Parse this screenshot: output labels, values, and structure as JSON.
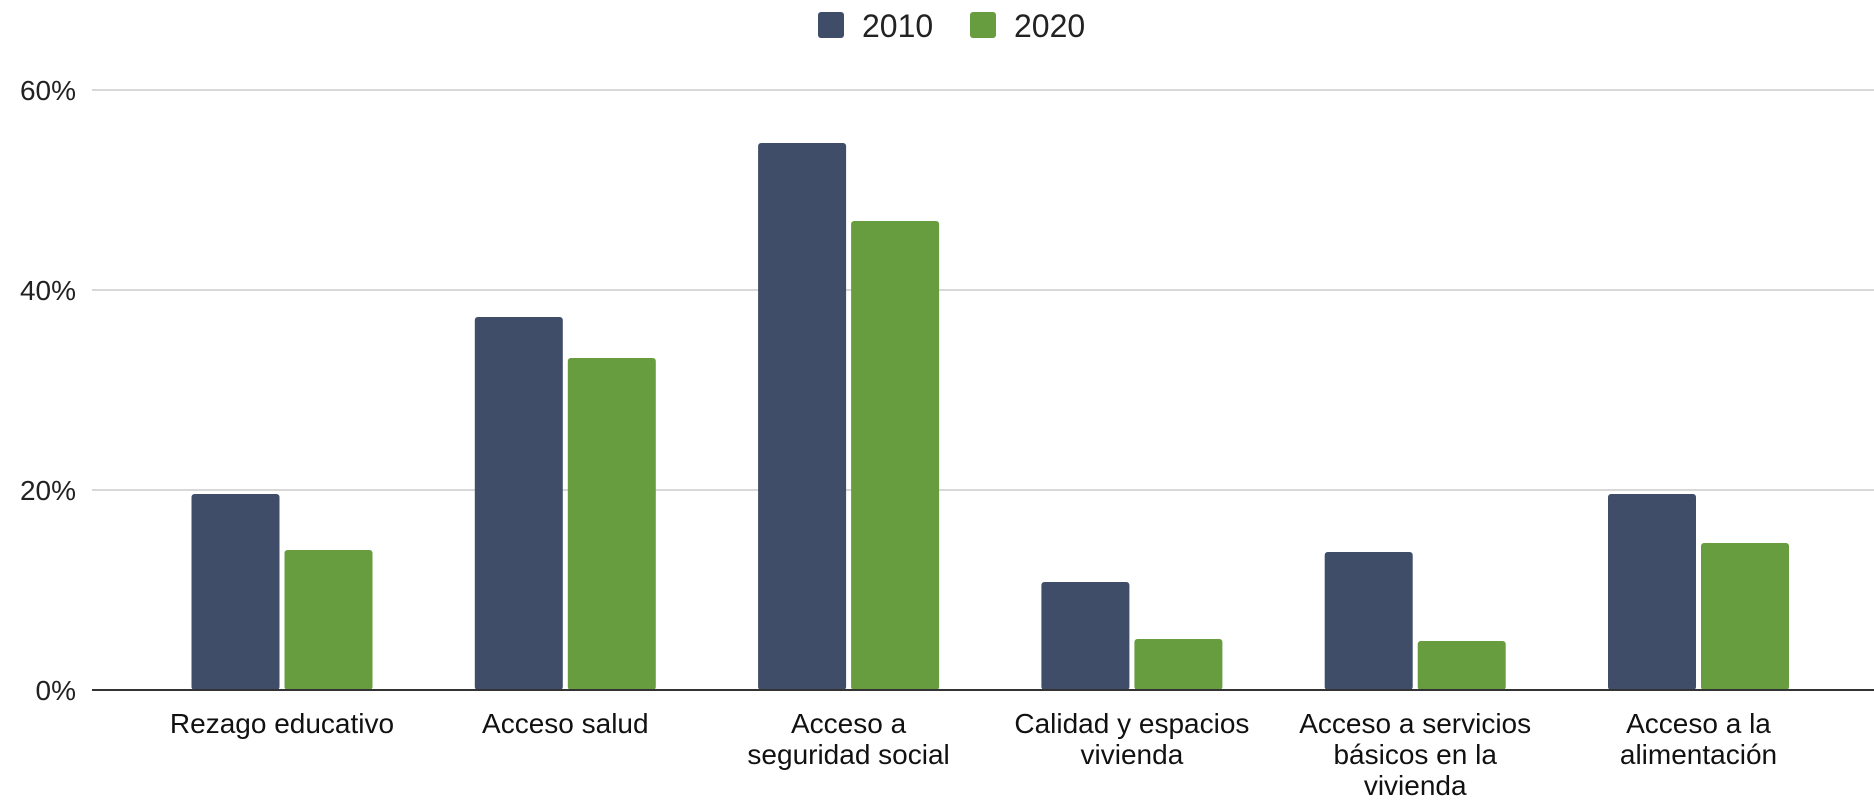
{
  "chart_data": {
    "type": "bar",
    "title": "",
    "xlabel": "",
    "ylabel": "",
    "categories": [
      [
        "Rezago educativo"
      ],
      [
        "Acceso salud"
      ],
      [
        "Acceso a",
        "seguridad social"
      ],
      [
        "Calidad y espacios",
        "vivienda"
      ],
      [
        "Acceso a servicios",
        "básicos en la",
        "vivienda"
      ],
      [
        "Acceso a la",
        "alimentación"
      ]
    ],
    "series": [
      {
        "name": "2010",
        "color": "#3f4d68",
        "values": [
          19.6,
          37.3,
          54.7,
          10.8,
          13.8,
          19.6
        ]
      },
      {
        "name": "2020",
        "color": "#689d3f",
        "values": [
          14.0,
          33.2,
          46.9,
          5.1,
          4.9,
          14.7
        ]
      }
    ],
    "ylim": [
      0,
      60
    ],
    "yticks": [
      0,
      20,
      40,
      60
    ],
    "ytick_labels": [
      "0%",
      "20%",
      "40%",
      "60%"
    ],
    "grid": true,
    "legend_position": "top-center"
  }
}
